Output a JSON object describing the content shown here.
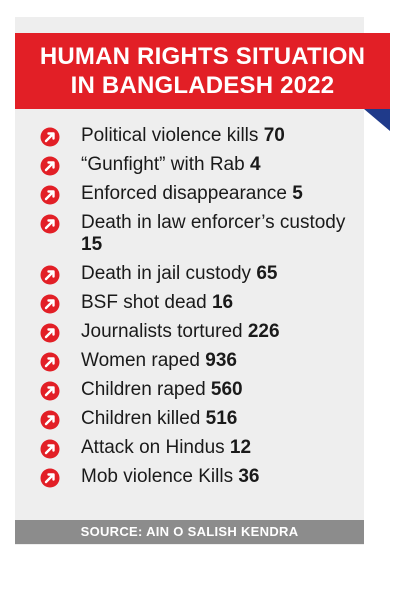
{
  "title_line1": "HUMAN RIGHTS SITUATION",
  "title_line2": "IN BANGLADESH 2022",
  "colors": {
    "accent": "#e21f26",
    "fold": "#1f3a8a",
    "card": "#eeeeee",
    "source_bar": "#8c8c8c"
  },
  "items": [
    {
      "label": "Political violence kills",
      "value": "70",
      "icon": "arrow-up-right-icon"
    },
    {
      "label": "“Gunfight” with Rab",
      "value": "4",
      "icon": "arrow-up-right-icon"
    },
    {
      "label": "Enforced disappearance",
      "value": "5",
      "icon": "arrow-up-right-icon"
    },
    {
      "label": "Death in law enforcer’s custody",
      "value": "15",
      "icon": "arrow-up-right-icon"
    },
    {
      "label": "Death in jail custody",
      "value": "65",
      "icon": "arrow-up-right-icon"
    },
    {
      "label": "BSF shot dead",
      "value": "16",
      "icon": "arrow-up-right-icon"
    },
    {
      "label": "Journalists tortured",
      "value": "226",
      "icon": "arrow-up-right-icon"
    },
    {
      "label": "Women raped",
      "value": "936",
      "icon": "arrow-up-right-icon"
    },
    {
      "label": "Children raped",
      "value": "560",
      "icon": "arrow-up-right-icon"
    },
    {
      "label": "Children killed",
      "value": "516",
      "icon": "arrow-up-right-icon"
    },
    {
      "label": "Attack on Hindus",
      "value": "12",
      "icon": "arrow-up-right-icon"
    },
    {
      "label": "Mob violence Kills",
      "value": "36",
      "icon": "arrow-up-right-icon"
    }
  ],
  "source": "SOURCE: AIN O SALISH KENDRA"
}
